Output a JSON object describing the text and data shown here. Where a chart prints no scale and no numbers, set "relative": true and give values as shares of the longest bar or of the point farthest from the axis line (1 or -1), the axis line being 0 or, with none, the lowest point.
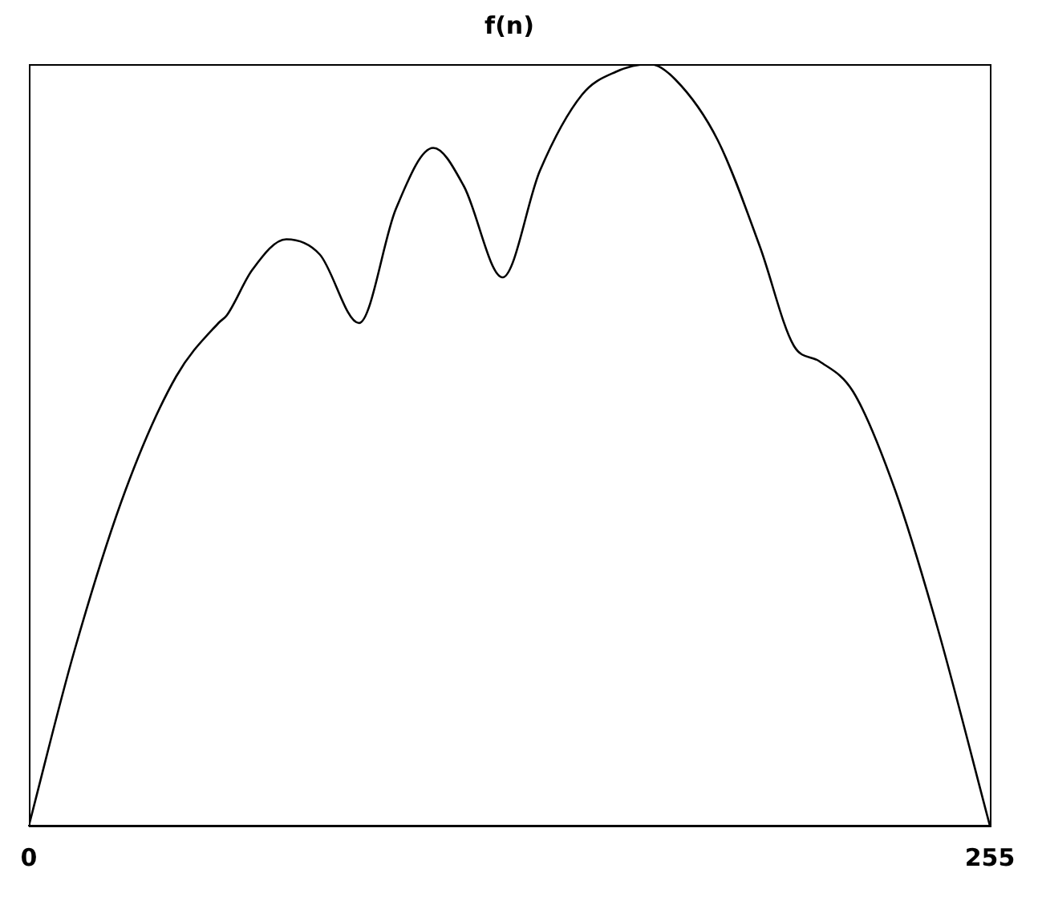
{
  "chart_data": {
    "type": "line",
    "title": "f(n)",
    "relative": true,
    "xlim": [
      0,
      255
    ],
    "xticks": [
      0,
      255
    ],
    "grid": false,
    "legend": false,
    "marker": "none",
    "line_style": "solid",
    "series": [
      {
        "color": "#000000",
        "x": [
          0,
          12.1,
          25.6,
          39.1,
          50.3,
          52.5,
          59.3,
          68.3,
          77.2,
          87.6,
          97.4,
          107.3,
          115.4,
          125.7,
          135.6,
          146.8,
          155.8,
          164.8,
          171.5,
          182.8,
          194.0,
          203.0,
          209.7,
          218.7,
          229.9,
          241.1,
          255
        ],
        "values": [
          0,
          0.23,
          0.44,
          0.59,
          0.66,
          0.67,
          0.73,
          0.77,
          0.75,
          0.66,
          0.81,
          0.89,
          0.84,
          0.72,
          0.86,
          0.96,
          0.99,
          1,
          0.98,
          0.9,
          0.76,
          0.63,
          0.61,
          0.57,
          0.44,
          0.26,
          0
        ]
      }
    ]
  }
}
